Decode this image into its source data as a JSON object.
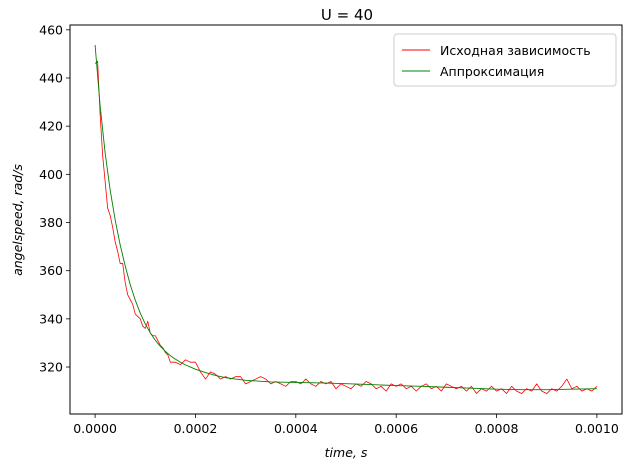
{
  "chart_data": {
    "type": "line",
    "title": "U = 40",
    "xlabel": "time, s",
    "ylabel": "angelspeed, rad/s",
    "xlim": [
      -5e-05,
      0.00105
    ],
    "ylim": [
      300.5,
      462
    ],
    "x_ticks": [
      "0.0000",
      "0.0002",
      "0.0004",
      "0.0006",
      "0.0008",
      "0.0010"
    ],
    "x_tick_values": [
      0,
      0.0002,
      0.0004,
      0.0006,
      0.0008,
      0.001
    ],
    "y_ticks": [
      "320",
      "340",
      "360",
      "380",
      "400",
      "420",
      "440",
      "460"
    ],
    "y_tick_values": [
      320,
      340,
      360,
      380,
      400,
      420,
      440,
      460
    ],
    "grid": false,
    "legend_position": "top-right",
    "series": [
      {
        "name": "Исходная зависимость",
        "color": "#ff0000",
        "x": [
          0,
          5e-06,
          1e-05,
          1.5e-05,
          2e-05,
          2.5e-05,
          3e-05,
          3.5e-05,
          4e-05,
          4.5e-05,
          5e-05,
          5.5e-05,
          6e-05,
          6.5e-05,
          7e-05,
          7.5e-05,
          8e-05,
          8.5e-05,
          9e-05,
          9.5e-05,
          0.0001,
          0.000105,
          0.00011,
          0.000115,
          0.00012,
          0.000125,
          0.00013,
          0.000135,
          0.00014,
          0.000145,
          0.00015,
          0.00016,
          0.00017,
          0.00018,
          0.00019,
          0.0002,
          0.00021,
          0.00022,
          0.00023,
          0.00024,
          0.00025,
          0.00026,
          0.00027,
          0.00028,
          0.00029,
          0.0003,
          0.00031,
          0.00032,
          0.00033,
          0.00034,
          0.00035,
          0.00036,
          0.00037,
          0.00038,
          0.00039,
          0.0004,
          0.00041,
          0.00042,
          0.00043,
          0.00044,
          0.00045,
          0.00046,
          0.00047,
          0.00048,
          0.00049,
          0.0005,
          0.00051,
          0.00052,
          0.00053,
          0.00054,
          0.00055,
          0.00056,
          0.00057,
          0.00058,
          0.00059,
          0.0006,
          0.00061,
          0.00062,
          0.00063,
          0.00064,
          0.00065,
          0.00066,
          0.00067,
          0.00068,
          0.00069,
          0.0007,
          0.00071,
          0.00072,
          0.00073,
          0.00074,
          0.00075,
          0.00076,
          0.00077,
          0.00078,
          0.00079,
          0.0008,
          0.00081,
          0.00082,
          0.00083,
          0.00084,
          0.00085,
          0.00086,
          0.00087,
          0.00088,
          0.00089,
          0.0009,
          0.00091,
          0.00092,
          0.00093,
          0.00094,
          0.00095,
          0.00096,
          0.00097,
          0.00098,
          0.00099,
          0.001
        ],
        "y": [
          446,
          447,
          425,
          408,
          397,
          386,
          383,
          378,
          372,
          368,
          363,
          363,
          355,
          350,
          348,
          346,
          342,
          341,
          340,
          337,
          336,
          339,
          334,
          333,
          333,
          331,
          329,
          328,
          326,
          325,
          322,
          322,
          321,
          323,
          322,
          322,
          318,
          315,
          318,
          317,
          315,
          316,
          315,
          316,
          316,
          313,
          314,
          315,
          316,
          315,
          313,
          314,
          313,
          312,
          314,
          314,
          313,
          315,
          313,
          312,
          314,
          313,
          314,
          311,
          313,
          312,
          311,
          313,
          312,
          314,
          313,
          311,
          312,
          310,
          313,
          312,
          313,
          311,
          312,
          310,
          312,
          313,
          311,
          312,
          310,
          313,
          312,
          311,
          312,
          310,
          312,
          309,
          311,
          310,
          312,
          310,
          311,
          309,
          312,
          310,
          309,
          311,
          310,
          313,
          310,
          309,
          311,
          310,
          312,
          315,
          311,
          312,
          310,
          311,
          310,
          312
        ]
      },
      {
        "name": "Аппроксимация",
        "color": "#008000",
        "x": [
          0,
          1e-05,
          2e-05,
          3e-05,
          4e-05,
          5e-05,
          6e-05,
          7e-05,
          8e-05,
          9e-05,
          0.0001,
          0.00011,
          0.00012,
          0.00013,
          0.00014,
          0.00015,
          0.00016,
          0.00017,
          0.00018,
          0.00019,
          0.0002,
          0.00022,
          0.00024,
          0.00026,
          0.00028,
          0.0003,
          0.00035,
          0.0004,
          0.00045,
          0.0005,
          0.00055,
          0.0006,
          0.00065,
          0.0007,
          0.00075,
          0.0008,
          0.00085,
          0.0009,
          0.00095,
          0.001
        ],
        "y": [
          453.7,
          428.5,
          408.9,
          393.5,
          381.1,
          370.7,
          362.0,
          354.2,
          347.8,
          342.4,
          337.9,
          334.2,
          331.1,
          328.6,
          326.5,
          324.7,
          323.3,
          322.0,
          320.9,
          320.0,
          319.1,
          317.7,
          316.5,
          315.6,
          315.0,
          314.5,
          313.8,
          313.6,
          313.4,
          313.1,
          312.7,
          312.3,
          312.0,
          311.6,
          311.2,
          310.8,
          310.6,
          310.6,
          310.8,
          311.0
        ]
      }
    ]
  }
}
